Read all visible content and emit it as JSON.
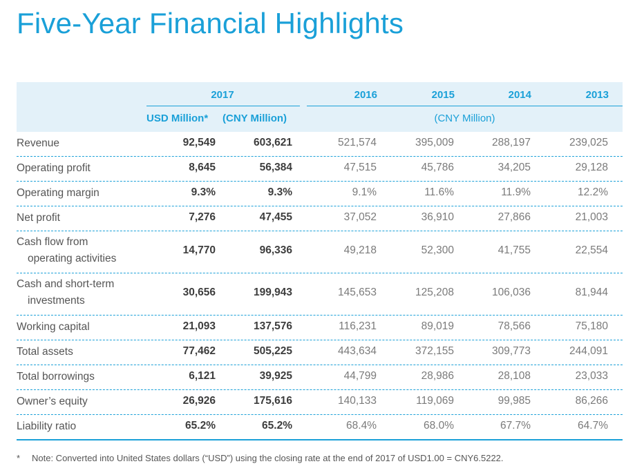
{
  "page": {
    "title": "Five-Year Financial Highlights"
  },
  "table": {
    "years": [
      "2017",
      "2016",
      "2015",
      "2014",
      "2013"
    ],
    "units": {
      "usd": "USD Million*",
      "cny": "(CNY Million)",
      "cny_range": "(CNY Million)"
    },
    "rows": [
      {
        "label": [
          "Revenue"
        ],
        "values": [
          "92,549",
          "603,621",
          "521,574",
          "395,009",
          "288,197",
          "239,025"
        ]
      },
      {
        "label": [
          "Operating profit"
        ],
        "values": [
          "8,645",
          "56,384",
          "47,515",
          "45,786",
          "34,205",
          "29,128"
        ]
      },
      {
        "label": [
          "Operating margin"
        ],
        "values": [
          "9.3%",
          "9.3%",
          "9.1%",
          "11.6%",
          "11.9%",
          "12.2%"
        ]
      },
      {
        "label": [
          "Net profit"
        ],
        "values": [
          "7,276",
          "47,455",
          "37,052",
          "36,910",
          "27,866",
          "21,003"
        ]
      },
      {
        "label": [
          "Cash flow from",
          "operating activities"
        ],
        "values": [
          "14,770",
          "96,336",
          "49,218",
          "52,300",
          "41,755",
          "22,554"
        ]
      },
      {
        "label": [
          "Cash and short-term",
          "investments"
        ],
        "values": [
          "30,656",
          "199,943",
          "145,653",
          "125,208",
          "106,036",
          "81,944"
        ]
      },
      {
        "label": [
          "Working capital"
        ],
        "values": [
          "21,093",
          "137,576",
          "116,231",
          "89,019",
          "78,566",
          "75,180"
        ]
      },
      {
        "label": [
          "Total assets"
        ],
        "values": [
          "77,462",
          "505,225",
          "443,634",
          "372,155",
          "309,773",
          "244,091"
        ]
      },
      {
        "label": [
          "Total borrowings"
        ],
        "values": [
          "6,121",
          "39,925",
          "44,799",
          "28,986",
          "28,108",
          "23,033"
        ]
      },
      {
        "label": [
          "Owner’s equity"
        ],
        "values": [
          "26,926",
          "175,616",
          "140,133",
          "119,069",
          "99,985",
          "86,266"
        ]
      },
      {
        "label": [
          "Liability ratio"
        ],
        "values": [
          "65.2%",
          "65.2%",
          "68.4%",
          "68.0%",
          "67.7%",
          "64.7%"
        ]
      }
    ]
  },
  "footnote": {
    "marker": "*",
    "text": "Note: Converted into United States dollars (“USD”) using the closing rate at the end of 2017 of USD1.00 = CNY6.5222."
  },
  "colors": {
    "accent": "#1aa0d8",
    "header_band": "#e3f1f9"
  }
}
